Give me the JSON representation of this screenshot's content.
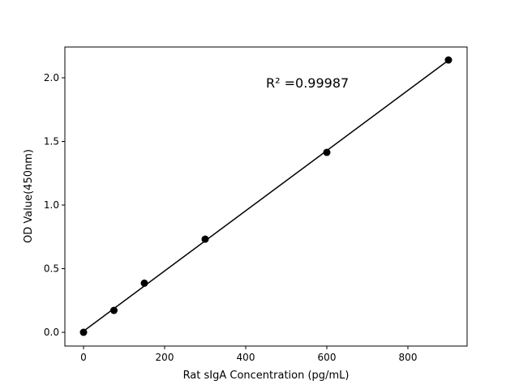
{
  "chart_data": {
    "type": "scatter",
    "title": "",
    "xlabel": "Rat sIgA Concentration (pg/mL)",
    "ylabel": "OD Value(450nm)",
    "xlim": [
      -46,
      946
    ],
    "ylim": [
      -0.108,
      2.242
    ],
    "xticks": [
      0,
      200,
      400,
      600,
      800
    ],
    "xtick_labels": [
      "0",
      "200",
      "400",
      "600",
      "800"
    ],
    "yticks": [
      0.0,
      0.5,
      1.0,
      1.5,
      2.0
    ],
    "ytick_labels": [
      "0.0",
      "0.5",
      "1.0",
      "1.5",
      "2.0"
    ],
    "grid": false,
    "x": [
      0,
      75,
      150,
      300,
      600,
      900
    ],
    "y": [
      0.0,
      0.172,
      0.386,
      0.732,
      1.414,
      2.14
    ],
    "fit": "linear",
    "annotation": "R² =0.99987",
    "colors": {
      "points": "#000000",
      "line": "#000000"
    }
  }
}
